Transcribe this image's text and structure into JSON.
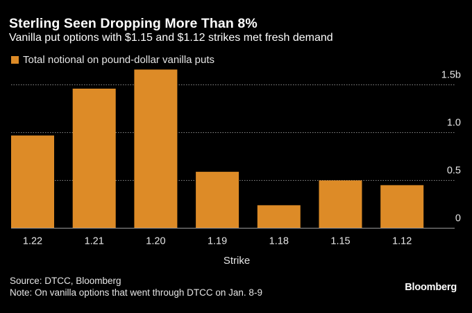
{
  "colors": {
    "background": "#000000",
    "bar": "#dd8b27",
    "grid": "#8a8a8a",
    "axis": "#9a9a9a",
    "text": "#e6e6e6"
  },
  "header": {
    "title": "Sterling Seen Dropping More Than 8%",
    "subtitle": "Vanilla put options with $1.15 and $1.12 strikes met fresh demand"
  },
  "footer": {
    "source": "Source: DTCC, Bloomberg",
    "note": "Note: On vanilla options that went through DTCC on Jan. 8-9",
    "brand": "Bloomberg"
  },
  "chart_data": {
    "type": "bar",
    "title": "Sterling Seen Dropping More Than 8%",
    "subtitle": "Vanilla put options with $1.15 and $1.12 strikes met fresh demand",
    "xlabel": "Strike",
    "ylabel": "",
    "categories": [
      "1.22",
      "1.21",
      "1.20",
      "1.19",
      "1.18",
      "1.15",
      "1.12"
    ],
    "series": [
      {
        "name": "Total notional on pound-dollar vanilla puts",
        "values": [
          0.97,
          1.46,
          1.66,
          0.59,
          0.24,
          0.5,
          0.45
        ]
      }
    ],
    "units": "billion",
    "ylim": [
      0,
      1.66
    ],
    "yticks": [
      0,
      0.5,
      1.0,
      1.5
    ],
    "ytick_labels": [
      "0",
      "0.5",
      "1.0",
      "1.5b"
    ],
    "y_axis_side": "right",
    "grid": true,
    "legend_position": "top-left"
  }
}
